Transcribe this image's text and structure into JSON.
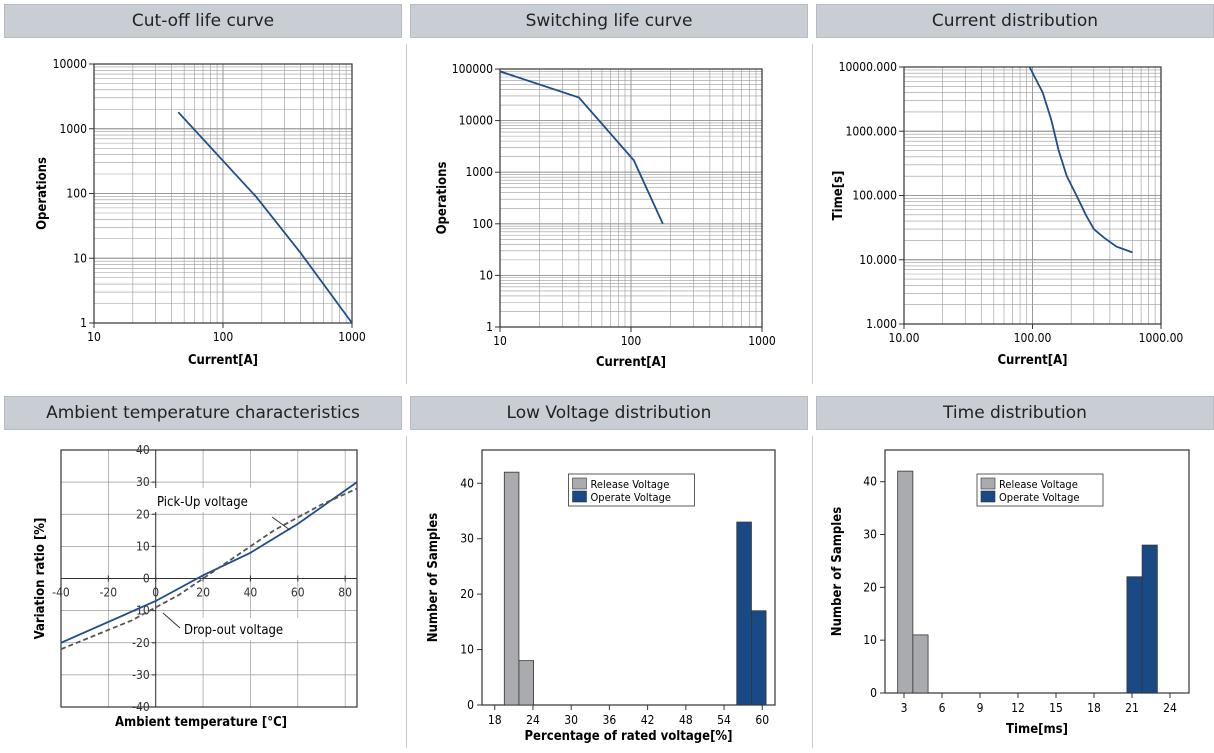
{
  "colors": {
    "header_bg": "#c9ced4",
    "line": "#1f4e8c",
    "grid": "#9a9a9a",
    "release": "#a9abae",
    "operate": "#1a4a85"
  },
  "chart_data": [
    {
      "id": "cutoff",
      "type": "line",
      "title": "Cut-off life curve",
      "xlabel": "Current[A]",
      "ylabel": "Operations",
      "xscale": "log",
      "yscale": "log",
      "xlim": [
        10,
        1000
      ],
      "ylim": [
        1,
        10000
      ],
      "xticks": [
        "10",
        "100",
        "1000"
      ],
      "yticks": [
        "1",
        "10",
        "100",
        "1000",
        "10000"
      ],
      "grid": true,
      "series": [
        {
          "x": [
            45,
            100,
            180,
            400,
            1000
          ],
          "y": [
            1800,
            320,
            90,
            12,
            1
          ]
        }
      ]
    },
    {
      "id": "switching",
      "type": "line",
      "title": "Switching life curve",
      "xlabel": "Current[A]",
      "ylabel": "Operations",
      "xscale": "log",
      "yscale": "log",
      "xlim": [
        10,
        1000
      ],
      "ylim": [
        1,
        100000
      ],
      "xticks": [
        "10",
        "100",
        "1000"
      ],
      "yticks": [
        "1",
        "10",
        "100",
        "1000",
        "10000",
        "100000"
      ],
      "grid": true,
      "series": [
        {
          "x": [
            10,
            40,
            105,
            175
          ],
          "y": [
            90000,
            28000,
            1700,
            100
          ]
        }
      ]
    },
    {
      "id": "current",
      "type": "line",
      "title": "Current distribution",
      "xlabel": "Current[A]",
      "ylabel": "Time[s]",
      "xscale": "log",
      "yscale": "log",
      "xlim": [
        10,
        1000
      ],
      "ylim": [
        1,
        10000
      ],
      "xticks": [
        "10.00",
        "100.00",
        "1000.00"
      ],
      "yticks": [
        "1.000",
        "10.000",
        "100.000",
        "1000.000",
        "10000.000"
      ],
      "grid": true,
      "series": [
        {
          "x": [
            95,
            120,
            140,
            160,
            185,
            220,
            260,
            300,
            360,
            450,
            600
          ],
          "y": [
            10000,
            4000,
            1500,
            500,
            200,
            100,
            50,
            30,
            22,
            16,
            13
          ]
        }
      ]
    },
    {
      "id": "ambient",
      "type": "line",
      "title": "Ambient temperature characteristics",
      "xlabel": "Ambient temperature [°C]",
      "ylabel": "Variation ratio [%]",
      "xlim": [
        -40,
        85
      ],
      "ylim": [
        -40,
        40
      ],
      "xticks": [
        "-40",
        "-20",
        "0",
        "20",
        "40",
        "60",
        "80"
      ],
      "yticks": [
        "-40",
        "-30",
        "-20",
        "-10",
        "0",
        "10",
        "20",
        "30",
        "40"
      ],
      "grid": true,
      "series": [
        {
          "name": "Pick-Up voltage",
          "style": "solid",
          "x": [
            -40,
            0,
            20,
            40,
            60,
            85
          ],
          "y": [
            -20,
            -7,
            1,
            8,
            17,
            30
          ]
        },
        {
          "name": "Drop-out voltage",
          "style": "dashed",
          "x": [
            -40,
            -10,
            10,
            30,
            50,
            70,
            85
          ],
          "y": [
            -22,
            -13,
            -5,
            5,
            15,
            23,
            28
          ]
        }
      ],
      "annotations": [
        "Pick-Up voltage",
        "Drop-out voltage"
      ]
    },
    {
      "id": "lowvoltage",
      "type": "bar",
      "title": "Low Voltage distribution",
      "xlabel": "Percentage of rated voltage[%]",
      "ylabel": "Number of Samples",
      "xlim": [
        16,
        62
      ],
      "ylim": [
        0,
        46
      ],
      "xticks": [
        "18",
        "24",
        "30",
        "36",
        "42",
        "48",
        "54",
        "60"
      ],
      "yticks": [
        "0",
        "10",
        "20",
        "30",
        "40"
      ],
      "legend": "top-center",
      "series": [
        {
          "name": "Release Voltage",
          "bins": [
            [
              19.5,
              21.8,
              42
            ],
            [
              21.8,
              24.1,
              8
            ]
          ]
        },
        {
          "name": "Operate Voltage",
          "bins": [
            [
              56.0,
              58.3,
              33
            ],
            [
              58.3,
              60.6,
              17
            ]
          ]
        }
      ]
    },
    {
      "id": "timedist",
      "type": "bar",
      "title": "Time distribution",
      "xlabel": "Time[ms]",
      "ylabel": "Number of Samples",
      "xlim": [
        1.5,
        25.5
      ],
      "ylim": [
        0,
        46
      ],
      "xticks": [
        "3",
        "6",
        "9",
        "12",
        "15",
        "18",
        "21",
        "24"
      ],
      "yticks": [
        "0",
        "10",
        "20",
        "30",
        "40"
      ],
      "legend": "top-center",
      "series": [
        {
          "name": "Release Voltage",
          "bins": [
            [
              2.5,
              3.7,
              42
            ],
            [
              3.7,
              4.9,
              11
            ]
          ]
        },
        {
          "name": "Operate Voltage",
          "bins": [
            [
              20.6,
              21.8,
              22
            ],
            [
              21.8,
              23.0,
              28
            ]
          ]
        }
      ]
    }
  ]
}
